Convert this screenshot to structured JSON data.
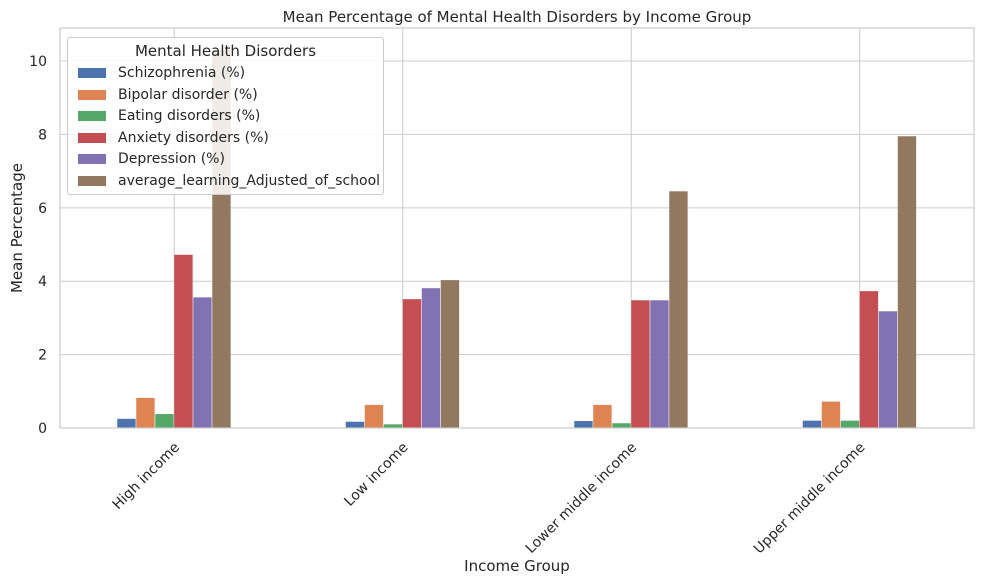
{
  "chart_data": {
    "type": "bar",
    "title": "Mean Percentage of Mental Health Disorders by Income Group",
    "xlabel": "Income Group",
    "ylabel": "Mean Percentage",
    "categories": [
      "High income",
      "Low income",
      "Lower middle income",
      "Upper middle income"
    ],
    "ylim": [
      0,
      10.9
    ],
    "yticks": [
      0,
      2,
      4,
      6,
      8,
      10
    ],
    "grid": true,
    "legend": {
      "title": "Mental Health Disorders",
      "placement": "top-left"
    },
    "series": [
      {
        "name": "Schizophrenia (%)",
        "color": "#4c72b0",
        "values": [
          0.25,
          0.17,
          0.19,
          0.2
        ]
      },
      {
        "name": "Bipolar disorder (%)",
        "color": "#dd8452",
        "values": [
          0.82,
          0.63,
          0.63,
          0.72
        ]
      },
      {
        "name": "Eating disorders (%)",
        "color": "#55a868",
        "values": [
          0.38,
          0.1,
          0.13,
          0.2
        ]
      },
      {
        "name": "Anxiety disorders (%)",
        "color": "#c44e52",
        "values": [
          4.72,
          3.51,
          3.48,
          3.73
        ]
      },
      {
        "name": "Depression (%)",
        "color": "#8172b3",
        "values": [
          3.56,
          3.81,
          3.48,
          3.18
        ]
      },
      {
        "name": "average_learning_Adjusted_of_school",
        "color": "#937860",
        "values": [
          10.3,
          4.03,
          6.45,
          7.95
        ]
      }
    ]
  }
}
